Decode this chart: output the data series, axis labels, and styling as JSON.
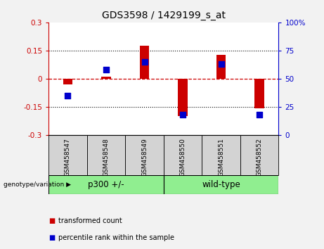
{
  "title": "GDS3598 / 1429199_s_at",
  "samples": [
    "GSM458547",
    "GSM458548",
    "GSM458549",
    "GSM458550",
    "GSM458551",
    "GSM458552"
  ],
  "red_values": [
    -0.03,
    0.01,
    0.175,
    -0.2,
    0.125,
    -0.16
  ],
  "blue_values_pct": [
    35,
    58,
    65,
    18,
    63,
    18
  ],
  "ylim_left": [
    -0.3,
    0.3
  ],
  "ylim_right": [
    0,
    100
  ],
  "yticks_left": [
    -0.3,
    -0.15,
    0,
    0.15,
    0.3
  ],
  "yticks_right": [
    0,
    25,
    50,
    75,
    100
  ],
  "ytick_labels_left": [
    "-0.3",
    "-0.15",
    "0",
    "0.15",
    "0.3"
  ],
  "ytick_labels_right": [
    "0",
    "25",
    "50",
    "75",
    "100%"
  ],
  "bar_color": "#CC0000",
  "dot_color": "#0000CC",
  "bar_width": 0.25,
  "dot_size": 30,
  "legend_items": [
    "transformed count",
    "percentile rank within the sample"
  ],
  "left_label_color": "#CC0000",
  "right_label_color": "#0000CC",
  "bg_white": "#FFFFFF",
  "bg_gray": "#D3D3D3",
  "bg_green": "#90EE90",
  "bg_fig": "#F2F2F2",
  "genotype_label": "genotype/variation",
  "group1_label": "p300 +/-",
  "group2_label": "wild-type",
  "group1_count": 3,
  "group2_count": 3
}
